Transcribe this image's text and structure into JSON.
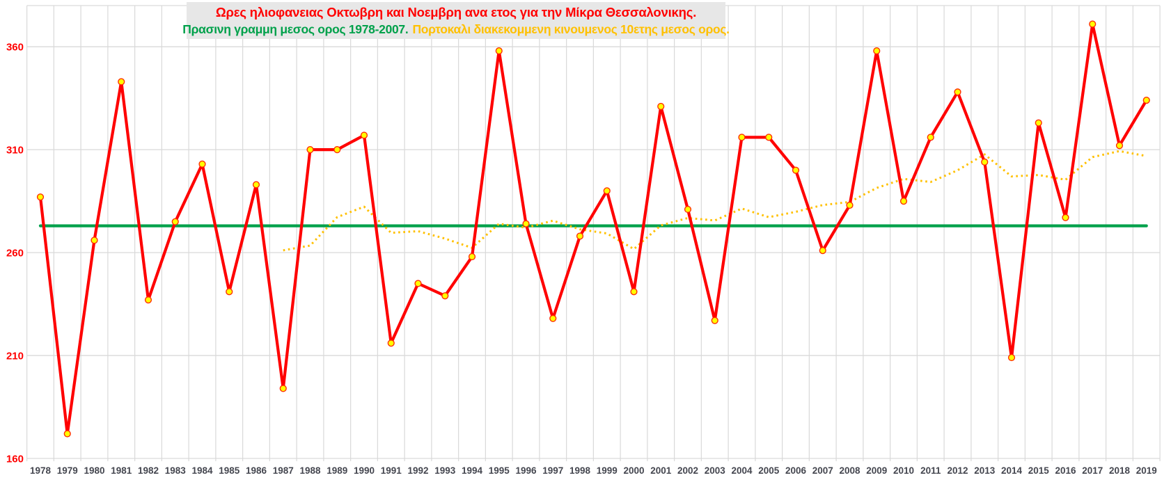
{
  "title": {
    "line1": "Ωρες ηλιοφανειας Οκτωβρη και Νοεμβρη ανα ετος για την Μίκρα Θεσσαλονικης.",
    "line2_green": "Πρασινη γραμμη μεσος ορος 1978-2007.",
    "line2_orange": "Πορτοκαλι διακεκομμενη κινουμενος 10ετης μεσος ορος."
  },
  "colors": {
    "yearly_line": "#ff0000",
    "marker_fill": "#ffff00",
    "marker_stroke": "#ff2d00",
    "average_line": "#00a14b",
    "moving_average_line": "#ffc000",
    "gridline": "#d9d9d9",
    "x_tick_label": "#44464f",
    "y_tick_label": "#ff0000",
    "title_band_bg": "#e7e7e7"
  },
  "chart_data": {
    "type": "line",
    "title": "Ωρες ηλιοφανειας Οκτωβρη και Νοεμβρη ανα ετος για την Μίκρα Θεσσαλονικης.",
    "subtitle": "Πρασινη γραμμη μεσος ορος 1978-2007. Πορτοκαλι διακεκομμενη κινουμενος 10ετης μεσος ορος.",
    "xlabel": "",
    "ylabel": "",
    "ylim": [
      160,
      380
    ],
    "yticks": [
      160,
      210,
      260,
      310,
      360
    ],
    "grid": true,
    "legend_position": "none",
    "x": [
      1978,
      1979,
      1980,
      1981,
      1982,
      1983,
      1984,
      1985,
      1986,
      1987,
      1988,
      1989,
      1990,
      1991,
      1992,
      1993,
      1994,
      1995,
      1996,
      1997,
      1998,
      1999,
      2000,
      2001,
      2002,
      2003,
      2004,
      2005,
      2006,
      2007,
      2008,
      2009,
      2010,
      2011,
      2012,
      2013,
      2014,
      2015,
      2016,
      2017,
      2018,
      2019
    ],
    "series": [
      {
        "name": "Ωρες ηλιοφανειας Οκτωβρη + Νοεμβρη ανα ετος",
        "style": "solid-with-markers",
        "color": "#ff0000",
        "values": [
          287,
          172,
          266,
          343,
          237,
          275,
          303,
          241,
          293,
          194,
          310,
          310,
          317,
          216,
          245,
          239,
          258,
          358,
          274,
          228,
          268,
          290,
          241,
          331,
          281,
          227,
          316,
          316,
          300,
          261,
          283,
          358,
          285,
          316,
          338,
          304,
          209,
          323,
          277,
          371,
          312,
          334
        ]
      },
      {
        "name": "Μεσος ορος 1978-2007",
        "style": "solid-constant",
        "color": "#00a14b",
        "constant_value": 273,
        "x_start": 1978,
        "x_end": 2019
      },
      {
        "name": "Κινουμενος 10ετης μεσος ορος",
        "style": "dotted",
        "color": "#ffc000",
        "x_start": 1987,
        "x_end": 2019,
        "values": [
          261.1,
          263.4,
          277.2,
          282.3,
          269.6,
          270.4,
          266.8,
          262.3,
          274.0,
          272.1,
          275.5,
          271.3,
          269.3,
          261.7,
          273.2,
          276.8,
          275.6,
          281.4,
          277.2,
          279.8,
          283.1,
          284.6,
          291.4,
          295.8,
          294.3,
          300.0,
          307.7,
          297.0,
          297.7,
          295.4,
          306.4,
          309.3,
          306.9
        ]
      }
    ]
  }
}
